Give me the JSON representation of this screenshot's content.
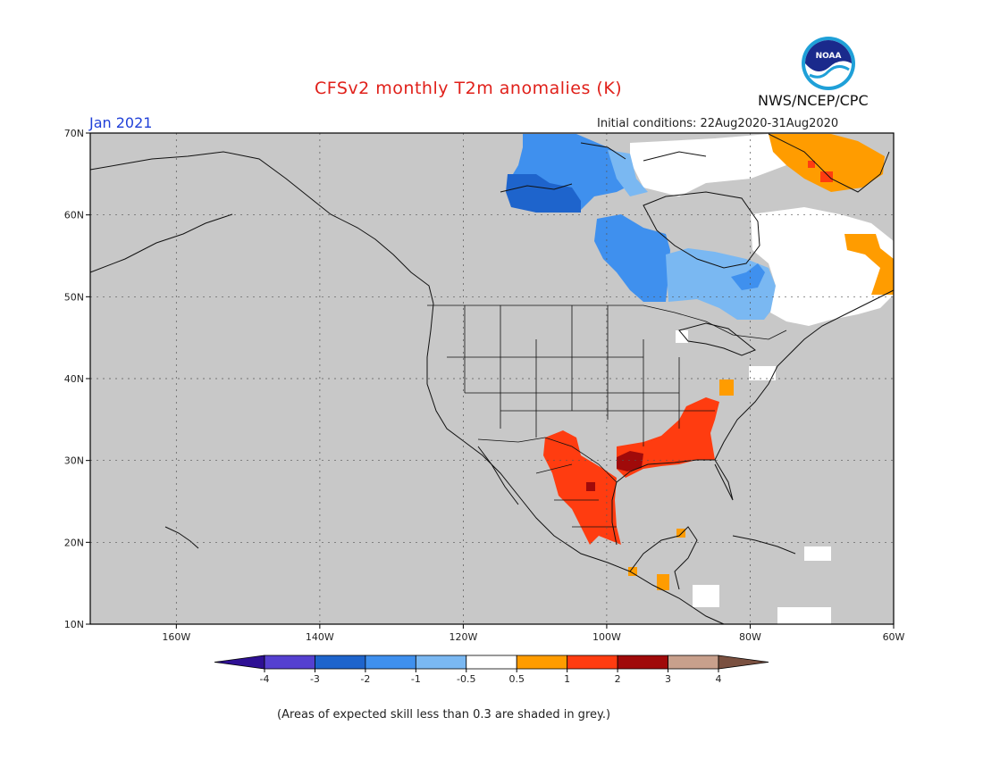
{
  "header": {
    "title": "CFSv2 monthly T2m anomalies (K)",
    "month": "Jan 2021",
    "initial_conditions": "Initial conditions: 22Aug2020-31Aug2020",
    "agency": "NWS/NCEP/CPC",
    "logo_text": "NOAA"
  },
  "map": {
    "projection": "cylindrical",
    "lon_range": [
      -172,
      -60
    ],
    "lat_range": [
      10,
      70
    ],
    "lat_labels": [
      "10N",
      "20N",
      "30N",
      "40N",
      "50N",
      "60N",
      "70N"
    ],
    "lon_labels": [
      "160W",
      "140W",
      "120W",
      "100W",
      "80W",
      "60W"
    ],
    "lat_values": [
      10,
      20,
      30,
      40,
      50,
      60,
      70
    ],
    "lon_values": [
      -160,
      -140,
      -120,
      -100,
      -80,
      -60
    ],
    "background_color": "#c8c8c8",
    "grid": "dotted",
    "anomaly_regions": [
      {
        "name": "northern-canada-cold",
        "category": "-2 to -1",
        "color": "#3f90ee"
      },
      {
        "name": "northern-canada-cold-core",
        "category": "-3 to -2",
        "color": "#1e64cc"
      },
      {
        "name": "central-canada-cold",
        "category": "-2 to -1",
        "color": "#3f90ee"
      },
      {
        "name": "eastern-canada-cool",
        "category": "-1 to -0.5",
        "color": "#7ab8f2"
      },
      {
        "name": "eastern-canada-near-normal",
        "category": "-0.5 to 0.5",
        "color": "#ffffff"
      },
      {
        "name": "mexico-warm",
        "category": "1 to 2",
        "color": "#ff3c10"
      },
      {
        "name": "gulf-coast-warm",
        "category": "1 to 2",
        "color": "#ff3c10"
      },
      {
        "name": "texas-louisiana-hot",
        "category": "2 to 3",
        "color": "#a00a0a"
      },
      {
        "name": "greenland-warm",
        "category": "0.5 to 1",
        "color": "#ff9c00"
      }
    ]
  },
  "colorbar": {
    "labels": [
      "-4",
      "-3",
      "-2",
      "-1",
      "-0.5",
      "0.5",
      "1",
      "2",
      "3",
      "4"
    ],
    "colors": [
      "#2e1094",
      "#5540d0",
      "#1e64cc",
      "#3f90ee",
      "#7ab8f2",
      "#ffffff",
      "#ff9c00",
      "#ff3c10",
      "#a00a0a",
      "#c8a08c",
      "#7a5040"
    ]
  },
  "footnote": "(Areas of expected skill less than 0.3 are shaded in grey.)"
}
